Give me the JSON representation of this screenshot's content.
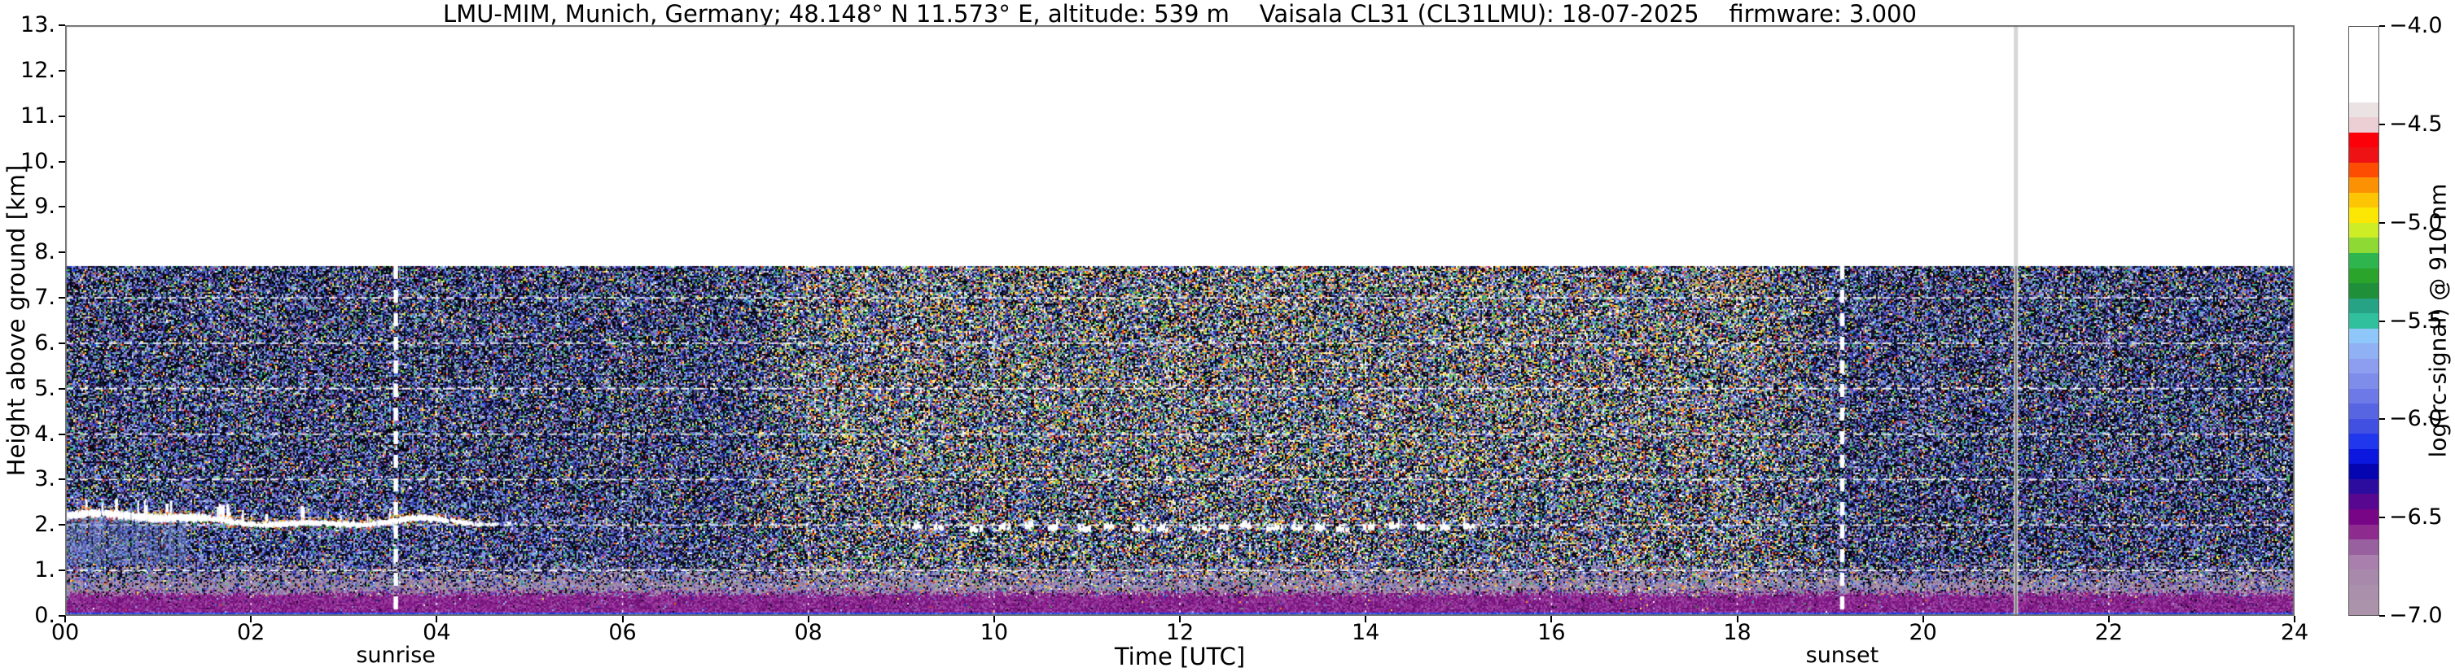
{
  "title": "LMU-MIM, Munich, Germany; 48.148° N 11.573° E, altitude: 539 m    Vaisala CL31 (CL31LMU): 18-07-2025    firmware: 3.000",
  "axes": {
    "x": {
      "label": "Time [UTC]",
      "ticks": {
        "values": [
          0,
          2,
          4,
          6,
          8,
          10,
          12,
          14,
          16,
          18,
          20,
          22,
          24
        ],
        "labels": [
          "00",
          "02",
          "04",
          "06",
          "08",
          "10",
          "12",
          "14",
          "16",
          "18",
          "20",
          "22",
          "24"
        ]
      }
    },
    "y": {
      "label": "Height above ground [km]",
      "ticks": {
        "values": [
          0,
          1,
          2,
          3,
          4,
          5,
          6,
          7,
          8,
          9,
          10,
          11,
          12,
          13
        ],
        "labels": [
          "0.",
          "1.",
          "2.",
          "3.",
          "4.",
          "5.",
          "6.",
          "7.",
          "8.",
          "9.",
          "10.",
          "11.",
          "12.",
          "13."
        ]
      }
    }
  },
  "colorbar": {
    "label": "log(rc-signal) @ 910 nm",
    "ticks": {
      "values": [
        -4.0,
        -4.5,
        -5.0,
        -5.5,
        -6.0,
        -6.5,
        -7.0
      ],
      "labels": [
        "−4.0",
        "−4.5",
        "−5.0",
        "−5.5",
        "−6.0",
        "−6.5",
        "−7.0"
      ]
    },
    "colors": [
      "#ffffff",
      "#ffffff",
      "#ffffff",
      "#ffffff",
      "#ffffff",
      "#ebe2e4",
      "#eccfd4",
      "#fb0008",
      "#ee1214",
      "#fc4d02",
      "#fd9104",
      "#fdc503",
      "#fbe604",
      "#cdee27",
      "#8fd934",
      "#2eb54d",
      "#2aa42b",
      "#1f9039",
      "#25a384",
      "#31c09e",
      "#90c7fb",
      "#90b1f3",
      "#8d9ef0",
      "#7e8cea",
      "#6c79e6",
      "#5765e3",
      "#4150e0",
      "#2137ed",
      "#0b17de",
      "#0605b2",
      "#2b0c9e",
      "#570790",
      "#780586",
      "#8d2b8f",
      "#99609f",
      "#a980ad",
      "#a989ab",
      "#ab90ac",
      "#ab93ab"
    ]
  },
  "annotations": {
    "sunrise": {
      "label": "sunrise",
      "time_utc": 3.56
    },
    "sunset": {
      "label": "sunset",
      "time_utc": 19.13
    },
    "data_gap": {
      "time_utc": 21.0
    }
  },
  "chart_data": {
    "type": "heatmap",
    "x_label": "Time [UTC]",
    "x_range_hours": [
      0,
      24
    ],
    "y_label": "Height above ground [km]",
    "y_range_km": [
      0,
      13
    ],
    "data_extent_km": [
      0,
      7.7
    ],
    "z_label": "log(rc-signal) @ 910 nm",
    "z_range": [
      -7.0,
      -4.0
    ],
    "grid": "white dashed, 1 km horizontal / 2 h vertical",
    "features": {
      "surface_strong_signal_band_km": [
        0,
        0.08
      ],
      "boundary_layer_haze_km": [
        0.08,
        1.15
      ],
      "nocturnal_aerosol_layer": {
        "t_start": 0.0,
        "t_end": 4.85,
        "height_km_start": 2.2,
        "height_km_end": 1.95
      },
      "sunrise_line_utc": 3.56,
      "sunset_line_utc": 19.13,
      "data_gap_line_utc": 21.0,
      "cloud_bases": [
        {
          "t": 9.08,
          "h": 1.93,
          "w": 0.14
        },
        {
          "t": 9.35,
          "h": 1.9,
          "w": 0.1
        },
        {
          "t": 9.72,
          "h": 1.88,
          "w": 0.16
        },
        {
          "t": 10.05,
          "h": 1.92,
          "w": 0.12
        },
        {
          "t": 10.33,
          "h": 1.95,
          "w": 0.08
        },
        {
          "t": 10.58,
          "h": 1.9,
          "w": 0.1
        },
        {
          "t": 10.9,
          "h": 1.88,
          "w": 0.14
        },
        {
          "t": 11.18,
          "h": 1.93,
          "w": 0.1
        },
        {
          "t": 11.48,
          "h": 1.9,
          "w": 0.16
        },
        {
          "t": 11.75,
          "h": 1.88,
          "w": 0.12
        },
        {
          "t": 12.13,
          "h": 1.9,
          "w": 0.18
        },
        {
          "t": 12.42,
          "h": 1.93,
          "w": 0.1
        },
        {
          "t": 12.65,
          "h": 1.95,
          "w": 0.12
        },
        {
          "t": 12.93,
          "h": 1.9,
          "w": 0.16
        },
        {
          "t": 13.2,
          "h": 1.92,
          "w": 0.12
        },
        {
          "t": 13.45,
          "h": 1.9,
          "w": 0.1
        },
        {
          "t": 13.68,
          "h": 1.88,
          "w": 0.14
        },
        {
          "t": 13.97,
          "h": 1.93,
          "w": 0.12
        },
        {
          "t": 14.25,
          "h": 1.95,
          "w": 0.1
        },
        {
          "t": 14.55,
          "h": 1.9,
          "w": 0.12
        },
        {
          "t": 14.8,
          "h": 1.92,
          "w": 0.1
        },
        {
          "t": 15.05,
          "h": 1.95,
          "w": 0.12
        }
      ]
    },
    "palettes": {
      "noise_base": [
        [
          "#05050e",
          16
        ],
        [
          "#0d0d1f",
          10
        ],
        [
          "#15152e",
          8
        ],
        [
          "#000000",
          6
        ],
        [
          "#1b2a6e",
          5
        ],
        [
          "#2e3fae",
          5
        ],
        [
          "#4456d8",
          4
        ],
        [
          "#1640e0",
          2
        ],
        [
          "#7d8fd8",
          7
        ],
        [
          "#93a4e6",
          5
        ],
        [
          "#6c7fd0",
          4
        ],
        [
          "#9fc4f2",
          2.5
        ],
        [
          "#7fb2ef",
          2
        ],
        [
          "#5b3f96",
          4
        ],
        [
          "#7b4fb0",
          3
        ],
        [
          "#8e63c0",
          2
        ],
        [
          "#3c2a70",
          3
        ],
        [
          "#a040a8",
          1.2
        ],
        [
          "#35a845",
          2.2
        ],
        [
          "#58c45a",
          1.5
        ],
        [
          "#2f8f3c",
          1.2
        ],
        [
          "#2fae9a",
          1.5
        ],
        [
          "#57c8b8",
          1
        ],
        [
          "#e4e432",
          1.6
        ],
        [
          "#ffee55",
          1
        ],
        [
          "#ff9022",
          0.9
        ],
        [
          "#ff6a00",
          0.6
        ],
        [
          "#f03428",
          0.8
        ],
        [
          "#d01818",
          0.5
        ],
        [
          "#e8e8f2",
          1.2
        ],
        [
          "#ffffff",
          0.8
        ],
        [
          "#8a8aa0",
          1.5
        ]
      ],
      "noise_day": [
        [
          "#ffffff",
          3
        ],
        [
          "#f2f2da",
          2
        ],
        [
          "#ffe23a",
          3
        ],
        [
          "#ffb020",
          2
        ],
        [
          "#ff7a10",
          1.5
        ],
        [
          "#ee3020",
          1.5
        ],
        [
          "#45c04f",
          3
        ],
        [
          "#2fae9a",
          1.5
        ],
        [
          "#9fd0f8",
          2
        ],
        [
          "#c8b080",
          1
        ],
        [
          "#d8b890",
          0.8
        ],
        [
          "#e070c0",
          0.5
        ]
      ],
      "night_blue": [
        [
          "#7d8fd8",
          5
        ],
        [
          "#93a4e6",
          4
        ],
        [
          "#4456d8",
          3
        ],
        [
          "#10102a",
          6
        ],
        [
          "#2e3fae",
          3
        ]
      ],
      "haze_mauve": [
        [
          "#a58ba6",
          4
        ],
        [
          "#ab93ab",
          4
        ],
        [
          "#9a7f9e",
          3
        ],
        [
          "#8f6f96",
          2
        ],
        [
          "#b09ab0",
          2
        ]
      ],
      "haze_magenta": [
        [
          "#8c2490",
          4
        ],
        [
          "#7a1580",
          3
        ],
        [
          "#9b3a9e",
          3
        ],
        [
          "#6a1172",
          2
        ],
        [
          "#a050a8",
          1.5
        ]
      ],
      "surface_blue": [
        [
          "#2742f2",
          4
        ],
        [
          "#3c5bf5",
          3
        ],
        [
          "#1830dc",
          3
        ],
        [
          "#5a7cf2",
          2
        ],
        [
          "#2050ff",
          2
        ]
      ],
      "tan_specks": [
        [
          "#c9a368",
          1
        ],
        [
          "#dcc197",
          1
        ],
        [
          "#b98f55",
          1
        ]
      ],
      "grid_color": "#ffffff",
      "sun_line_color": "#ffffff",
      "gap_band_color": "#d6d6d6",
      "gap_line_color": "#6f6f6f",
      "spine_color": "#707070"
    }
  }
}
